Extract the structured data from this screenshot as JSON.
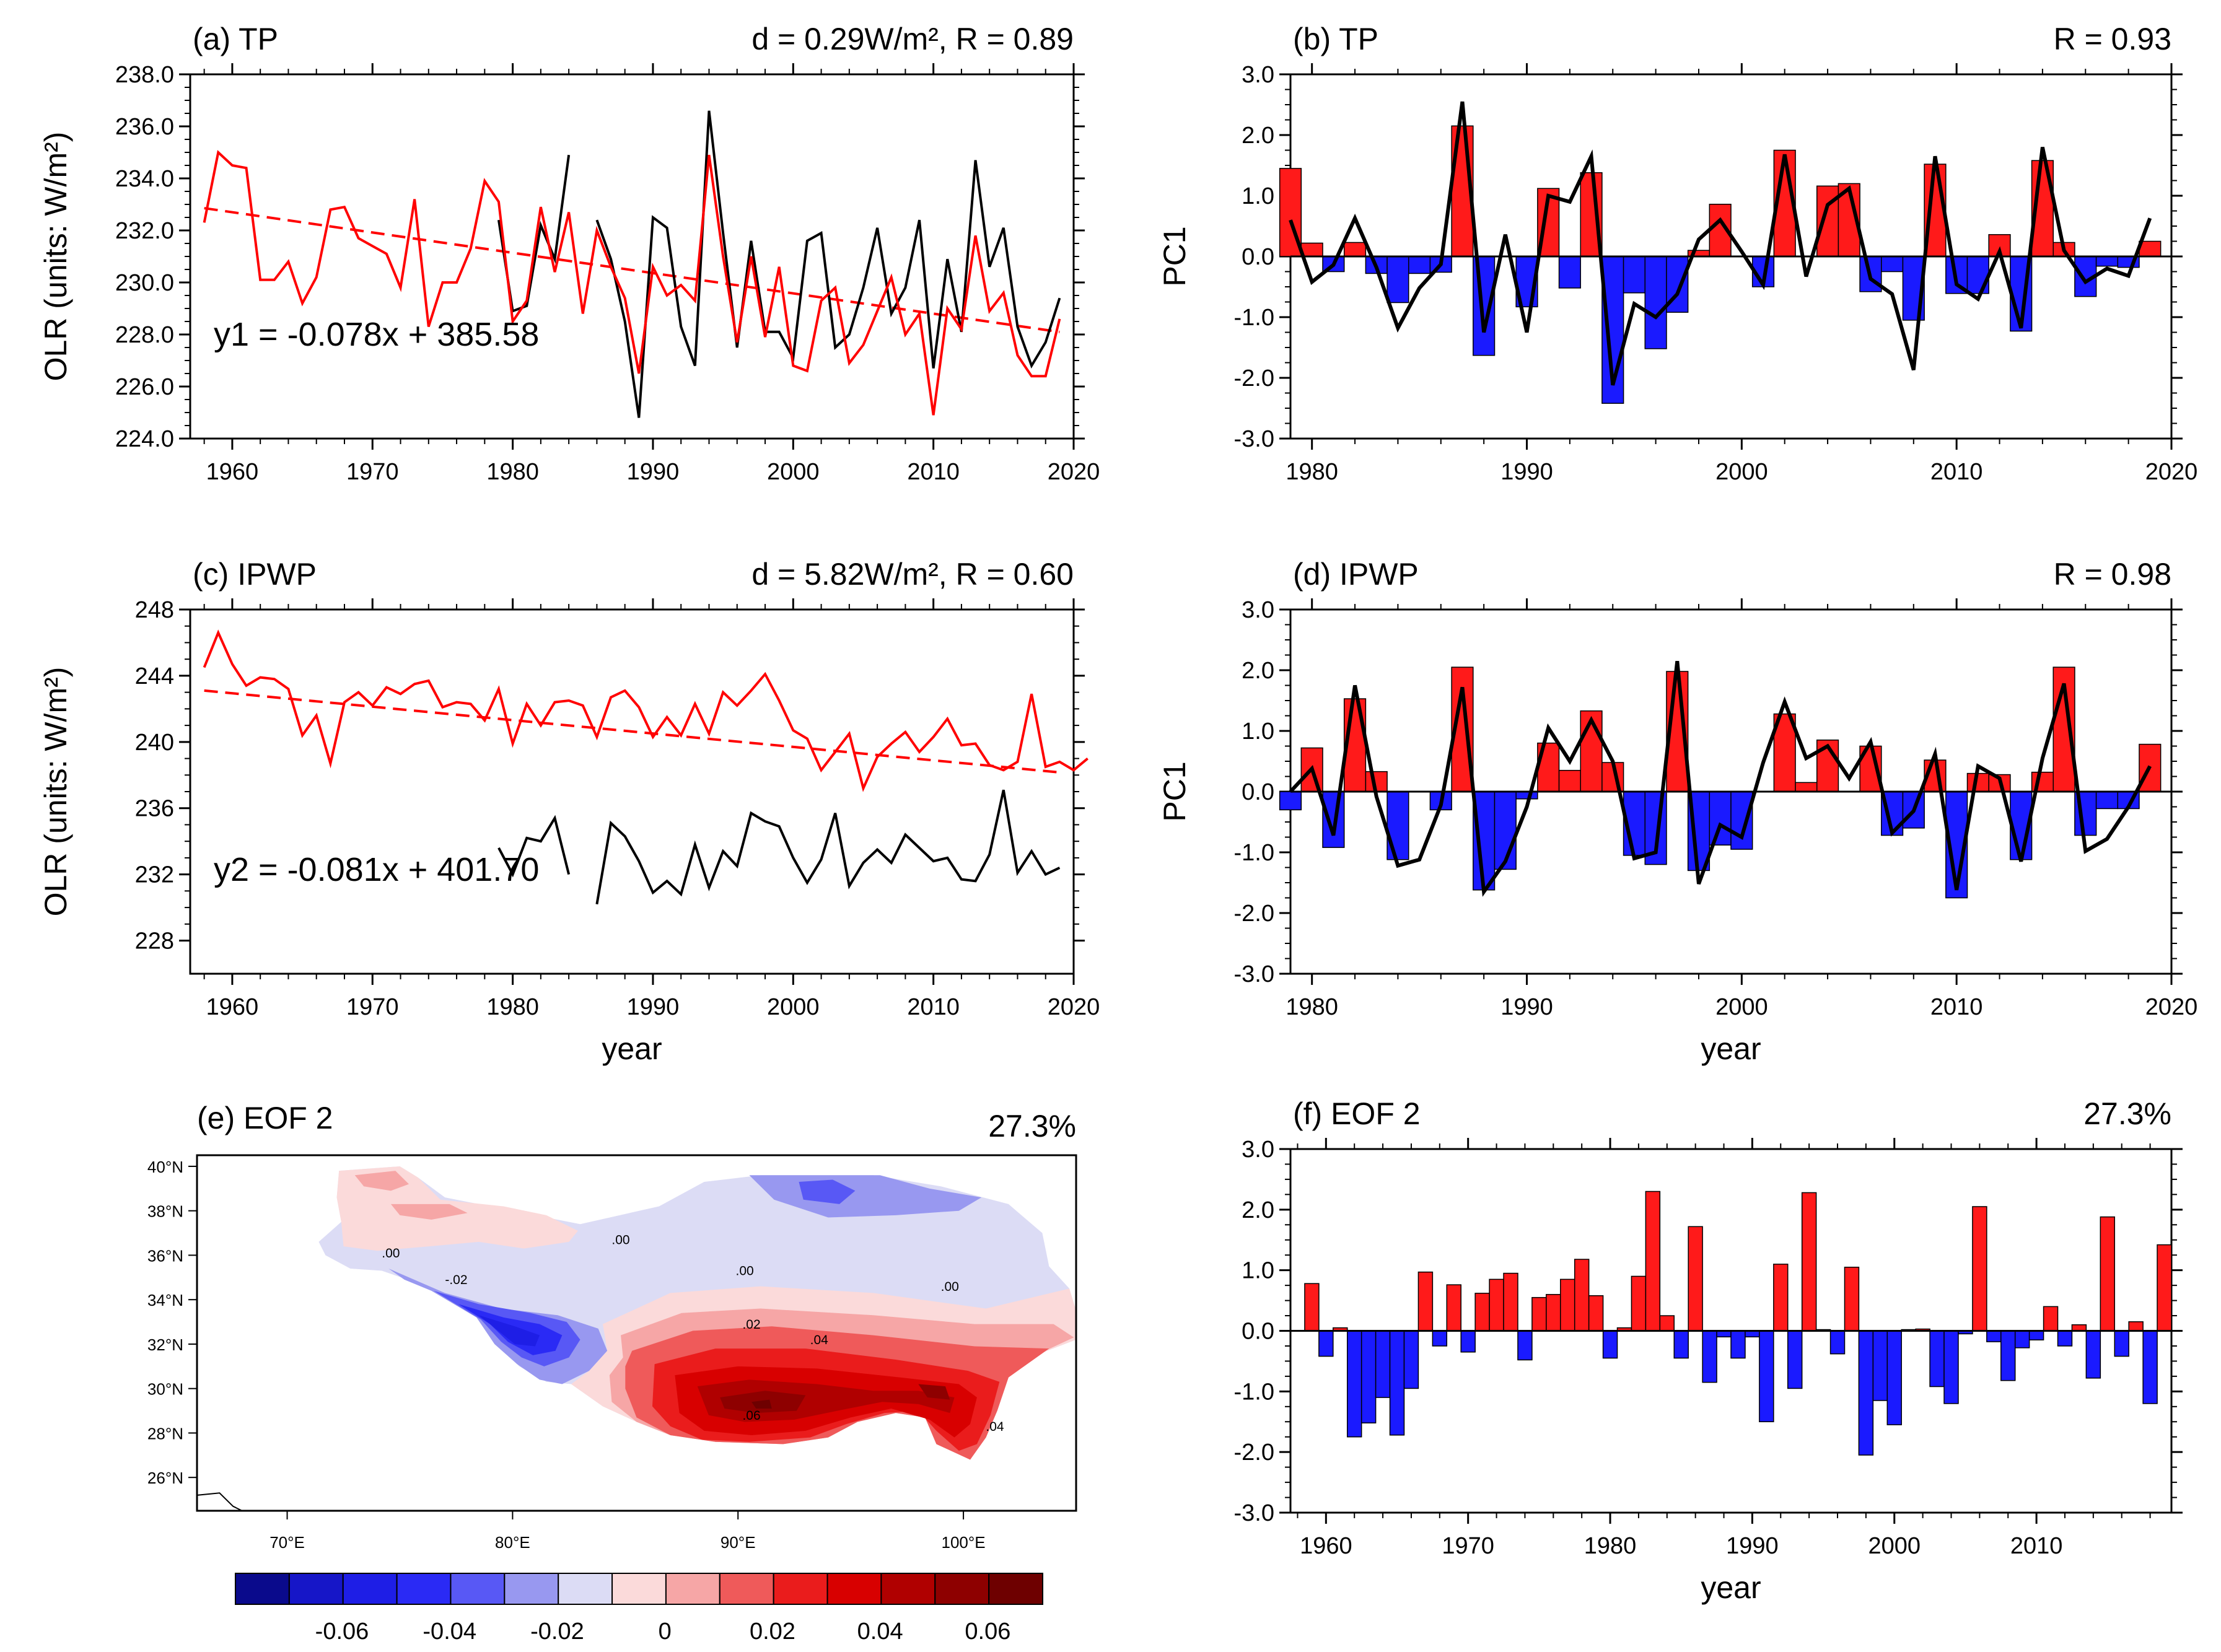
{
  "colors": {
    "red": "#ff0000",
    "blue": "#0000ff",
    "black": "#000000",
    "bar_red": "#ff1a1a",
    "bar_blue": "#1a1aff"
  },
  "chart_data": [
    {
      "id": "a",
      "type": "line",
      "title": "(a) TP",
      "stats": "d = 0.29W/m², R = 0.89",
      "ylabel": "OLR (units: W/m²)",
      "xlabel": "",
      "xlim": [
        1957,
        2020
      ],
      "ylim": [
        224,
        238
      ],
      "yticks": [
        224,
        226,
        228,
        230,
        232,
        234,
        236,
        238
      ],
      "ytick_labels": [
        "224.0",
        "226.0",
        "228.0",
        "230.0",
        "232.0",
        "234.0",
        "236.0",
        "238.0"
      ],
      "xticks": [
        1960,
        1970,
        1980,
        1990,
        2000,
        2010,
        2020
      ],
      "equation": "y1 = -0.078x + 385.58",
      "trend": {
        "slope": -0.078,
        "intercept": 385.58
      },
      "series": [
        {
          "name": "red",
          "color": "#ff0000",
          "x_start": 1958,
          "values": [
            232.3,
            235.0,
            234.5,
            234.4,
            230.1,
            230.1,
            230.8,
            229.2,
            230.2,
            232.8,
            232.9,
            231.7,
            231.4,
            231.1,
            229.8,
            233.2,
            228.3,
            230.0,
            230.0,
            231.3,
            233.9,
            233.1,
            228.5,
            229.3,
            232.9,
            230.4,
            232.7,
            228.8,
            232.0,
            230.6,
            229.4,
            226.5,
            230.6,
            229.5,
            229.9,
            229.3,
            234.9,
            231.0,
            227.7,
            231.0,
            227.9,
            230.6,
            226.8,
            226.6,
            229.3,
            229.8,
            226.9,
            227.6,
            228.9,
            230.2,
            228.0,
            228.8,
            224.9,
            229.0,
            228.2,
            231.8,
            228.9,
            229.6,
            227.2,
            226.4,
            226.4,
            228.6
          ]
        },
        {
          "name": "black",
          "color": "#000000",
          "segments": [
            {
              "x_start": 1979,
              "values": [
                232.4,
                228.9,
                229.1,
                232.2,
                230.9,
                234.9
              ]
            },
            {
              "x_start": 1986,
              "values": [
                232.4,
                230.9,
                228.5,
                224.8,
                232.5,
                232.1,
                228.3,
                226.8,
                236.6,
                231.9,
                227.5,
                231.6,
                228.1,
                228.1,
                227.1,
                231.6,
                231.9,
                227.5,
                228.0,
                229.8,
                232.1,
                228.8,
                229.8,
                232.4,
                226.7,
                230.9,
                228.1,
                234.7,
                230.6,
                232.1,
                228.3,
                226.8,
                227.7,
                229.4
              ]
            }
          ]
        }
      ]
    },
    {
      "id": "b",
      "type": "bar",
      "title": "(b) TP",
      "stats": "R = 0.93",
      "ylabel": "PC1",
      "xlabel": "",
      "xlim": [
        1979,
        2020
      ],
      "ylim": [
        -3,
        3
      ],
      "yticks": [
        -3,
        -2,
        -1,
        0,
        1,
        2,
        3
      ],
      "ytick_labels": [
        "-3.0",
        "-2.0",
        "-1.0",
        "0.0",
        "1.0",
        "2.0",
        "3.0"
      ],
      "xticks": [
        1980,
        1990,
        2000,
        2010,
        2020
      ],
      "x_start": 1979,
      "bars": [
        1.45,
        0.22,
        -0.25,
        0.23,
        -0.28,
        -0.76,
        -0.28,
        -0.26,
        2.15,
        -1.63,
        0.0,
        -0.83,
        1.12,
        -0.52,
        1.38,
        -2.42,
        -0.6,
        -1.52,
        -0.92,
        0.1,
        0.86,
        0.0,
        -0.5,
        1.75,
        0.0,
        1.16,
        1.2,
        -0.58,
        -0.25,
        -1.05,
        1.52,
        -0.61,
        -0.61,
        0.36,
        -1.23,
        1.58,
        0.23,
        -0.66,
        -0.16,
        -0.18,
        0.25
      ],
      "line_values": [
        0.6,
        -0.42,
        -0.14,
        0.63,
        -0.18,
        -1.18,
        -0.52,
        -0.13,
        2.55,
        -1.25,
        0.36,
        -1.25,
        1.0,
        0.9,
        1.65,
        -2.12,
        -0.78,
        -1.0,
        -0.62,
        0.28,
        0.6,
        0.08,
        -0.47,
        1.68,
        -0.33,
        0.85,
        1.12,
        -0.37,
        -0.62,
        -1.87,
        1.65,
        -0.46,
        -0.7,
        0.08,
        -1.18,
        1.8,
        0.1,
        -0.42,
        -0.2,
        -0.32,
        0.63
      ]
    },
    {
      "id": "c",
      "type": "line",
      "title": "(c) IPWP",
      "stats": "d = 5.82W/m², R = 0.60",
      "ylabel": "OLR (units: W/m²)",
      "xlabel": "year",
      "xlim": [
        1957,
        2020
      ],
      "ylim": [
        226,
        248
      ],
      "yticks": [
        228,
        232,
        236,
        240,
        244,
        248
      ],
      "ytick_labels": [
        "228",
        "232",
        "236",
        "240",
        "244",
        "248"
      ],
      "xticks": [
        1960,
        1970,
        1980,
        1990,
        2000,
        2010,
        2020
      ],
      "equation": "y2 = -0.081x + 401.70",
      "trend": {
        "slope": -0.081,
        "intercept": 401.7
      },
      "series": [
        {
          "name": "red",
          "color": "#ff0000",
          "x_start": 1958,
          "values": [
            244.5,
            246.6,
            244.7,
            243.4,
            243.9,
            243.8,
            243.2,
            240.4,
            241.6,
            238.7,
            242.4,
            243.0,
            242.2,
            243.3,
            242.9,
            243.5,
            243.7,
            242.1,
            242.4,
            242.3,
            241.3,
            243.2,
            239.9,
            242.3,
            241.0,
            242.4,
            242.5,
            242.2,
            240.3,
            242.7,
            243.1,
            242.1,
            240.3,
            241.5,
            240.4,
            242.3,
            240.5,
            243.0,
            242.2,
            243.1,
            244.1,
            242.5,
            240.7,
            240.2,
            238.3,
            239.4,
            240.5,
            237.2,
            239.1,
            239.9,
            240.6,
            239.4,
            240.3,
            241.4,
            239.8,
            239.9,
            238.6,
            238.3,
            238.8,
            242.9,
            238.5,
            238.8,
            238.3,
            239.0
          ]
        },
        {
          "name": "black",
          "color": "#000000",
          "segments": [
            {
              "x_start": 1979,
              "values": [
                233.6,
                232.0,
                234.2,
                234.0,
                235.4,
                232.0
              ]
            },
            {
              "x_start": 1986,
              "values": [
                230.2,
                235.1,
                234.3,
                232.8,
                230.9,
                231.6,
                230.8,
                233.8,
                231.2,
                233.4,
                232.5,
                235.7,
                235.2,
                234.9,
                233.0,
                231.5,
                232.9,
                235.7,
                231.3,
                232.7,
                233.5,
                232.7,
                234.4,
                233.6,
                232.8,
                233.0,
                231.7,
                231.6,
                233.2,
                237.1,
                232.1,
                233.4,
                232.0,
                232.4
              ]
            }
          ]
        }
      ]
    },
    {
      "id": "d",
      "type": "bar",
      "title": "(d) IPWP",
      "stats": "R = 0.98",
      "ylabel": "PC1",
      "xlabel": "year",
      "xlim": [
        1979,
        2020
      ],
      "ylim": [
        -3,
        3
      ],
      "yticks": [
        -3,
        -2,
        -1,
        0,
        1,
        2,
        3
      ],
      "ytick_labels": [
        "-3.0",
        "-2.0",
        "-1.0",
        "0.0",
        "1.0",
        "2.0",
        "3.0"
      ],
      "xticks": [
        1980,
        1990,
        2000,
        2010,
        2020
      ],
      "x_start": 1979,
      "bars": [
        -0.3,
        0.72,
        -0.92,
        1.53,
        0.33,
        -1.12,
        0.0,
        -0.3,
        2.05,
        -1.62,
        -1.28,
        -0.12,
        0.8,
        0.35,
        1.33,
        0.48,
        -1.05,
        -1.2,
        1.98,
        -1.3,
        -0.88,
        -0.95,
        0.0,
        1.28,
        0.15,
        0.85,
        0.0,
        0.75,
        -0.72,
        -0.6,
        0.52,
        -1.75,
        0.3,
        0.28,
        -1.12,
        0.32,
        2.05,
        -0.72,
        -0.28,
        -0.28,
        0.78
      ],
      "line_values": [
        0.0,
        0.38,
        -0.72,
        1.75,
        -0.08,
        -1.22,
        -1.12,
        -0.22,
        1.72,
        -1.65,
        -1.15,
        -0.25,
        1.05,
        0.5,
        1.18,
        0.5,
        -1.1,
        -1.0,
        2.15,
        -1.52,
        -0.55,
        -0.75,
        0.48,
        1.48,
        0.55,
        0.75,
        0.22,
        0.82,
        -0.68,
        -0.32,
        0.62,
        -1.62,
        0.42,
        0.22,
        -1.15,
        0.55,
        1.78,
        -0.98,
        -0.78,
        -0.25,
        0.42
      ]
    },
    {
      "id": "e",
      "type": "heatmap",
      "title": "(e) EOF 2",
      "variance": "27.3%",
      "lon_range": [
        66,
        105
      ],
      "lat_range": [
        24.5,
        40.5
      ],
      "xtick_labels": [
        "70°E",
        "80°E",
        "90°E",
        "100°E"
      ],
      "xtick_values": [
        70,
        80,
        90,
        100
      ],
      "ytick_labels": [
        "26°N",
        "28°N",
        "30°N",
        "32°N",
        "34°N",
        "36°N",
        "38°N",
        "40°N"
      ],
      "ytick_values": [
        26,
        28,
        30,
        32,
        34,
        36,
        38,
        40
      ],
      "contour_labels": [
        ".00",
        ".00",
        ".00",
        ".00",
        "-.02",
        ".02",
        ".04",
        ".06",
        ".04"
      ],
      "colorbar": {
        "levels": [
          "-0.06",
          "-0.04",
          "-0.02",
          "0",
          "0.02",
          "0.04",
          "0.06"
        ],
        "colors": [
          "#0a0a8c",
          "#1616c8",
          "#1e1ee6",
          "#2a2af5",
          "#5858f5",
          "#9898f0",
          "#dcdcf5",
          "#fbdada",
          "#f6a6a6",
          "#ef5a5a",
          "#ea1c1c",
          "#d80000",
          "#b00000",
          "#8e0000",
          "#6e0000"
        ]
      }
    },
    {
      "id": "f",
      "type": "bar",
      "title": "(f) EOF 2",
      "stats": "27.3%",
      "ylabel": "",
      "xlabel": "year",
      "xlim": [
        1957.5,
        2019.5
      ],
      "ylim": [
        -3,
        3
      ],
      "yticks": [
        -3,
        -2,
        -1,
        0,
        1,
        2,
        3
      ],
      "ytick_labels": [
        "-3.0",
        "-2.0",
        "-1.0",
        "0.0",
        "1.0",
        "2.0",
        "3.0"
      ],
      "xticks": [
        1960,
        1970,
        1980,
        1990,
        2000,
        2010
      ],
      "x_start": 1959,
      "bars": [
        0.78,
        -0.42,
        0.05,
        -1.75,
        -1.52,
        -1.1,
        -1.72,
        -0.95,
        0.97,
        -0.25,
        0.76,
        -0.35,
        0.62,
        0.85,
        0.95,
        -0.48,
        0.55,
        0.6,
        0.85,
        1.18,
        0.58,
        -0.45,
        0.05,
        0.9,
        2.3,
        0.25,
        -0.45,
        1.72,
        -0.85,
        -0.1,
        -0.45,
        -0.1,
        -1.5,
        1.1,
        -0.95,
        2.28,
        0.02,
        -0.38,
        1.05,
        -2.05,
        -1.15,
        -1.55,
        0.02,
        0.03,
        -0.92,
        -1.2,
        -0.05,
        2.05,
        -0.18,
        -0.82,
        -0.28,
        -0.15,
        0.4,
        -0.25,
        0.1,
        -0.78,
        1.88,
        -0.42,
        0.15,
        -1.2,
        1.42
      ]
    }
  ]
}
